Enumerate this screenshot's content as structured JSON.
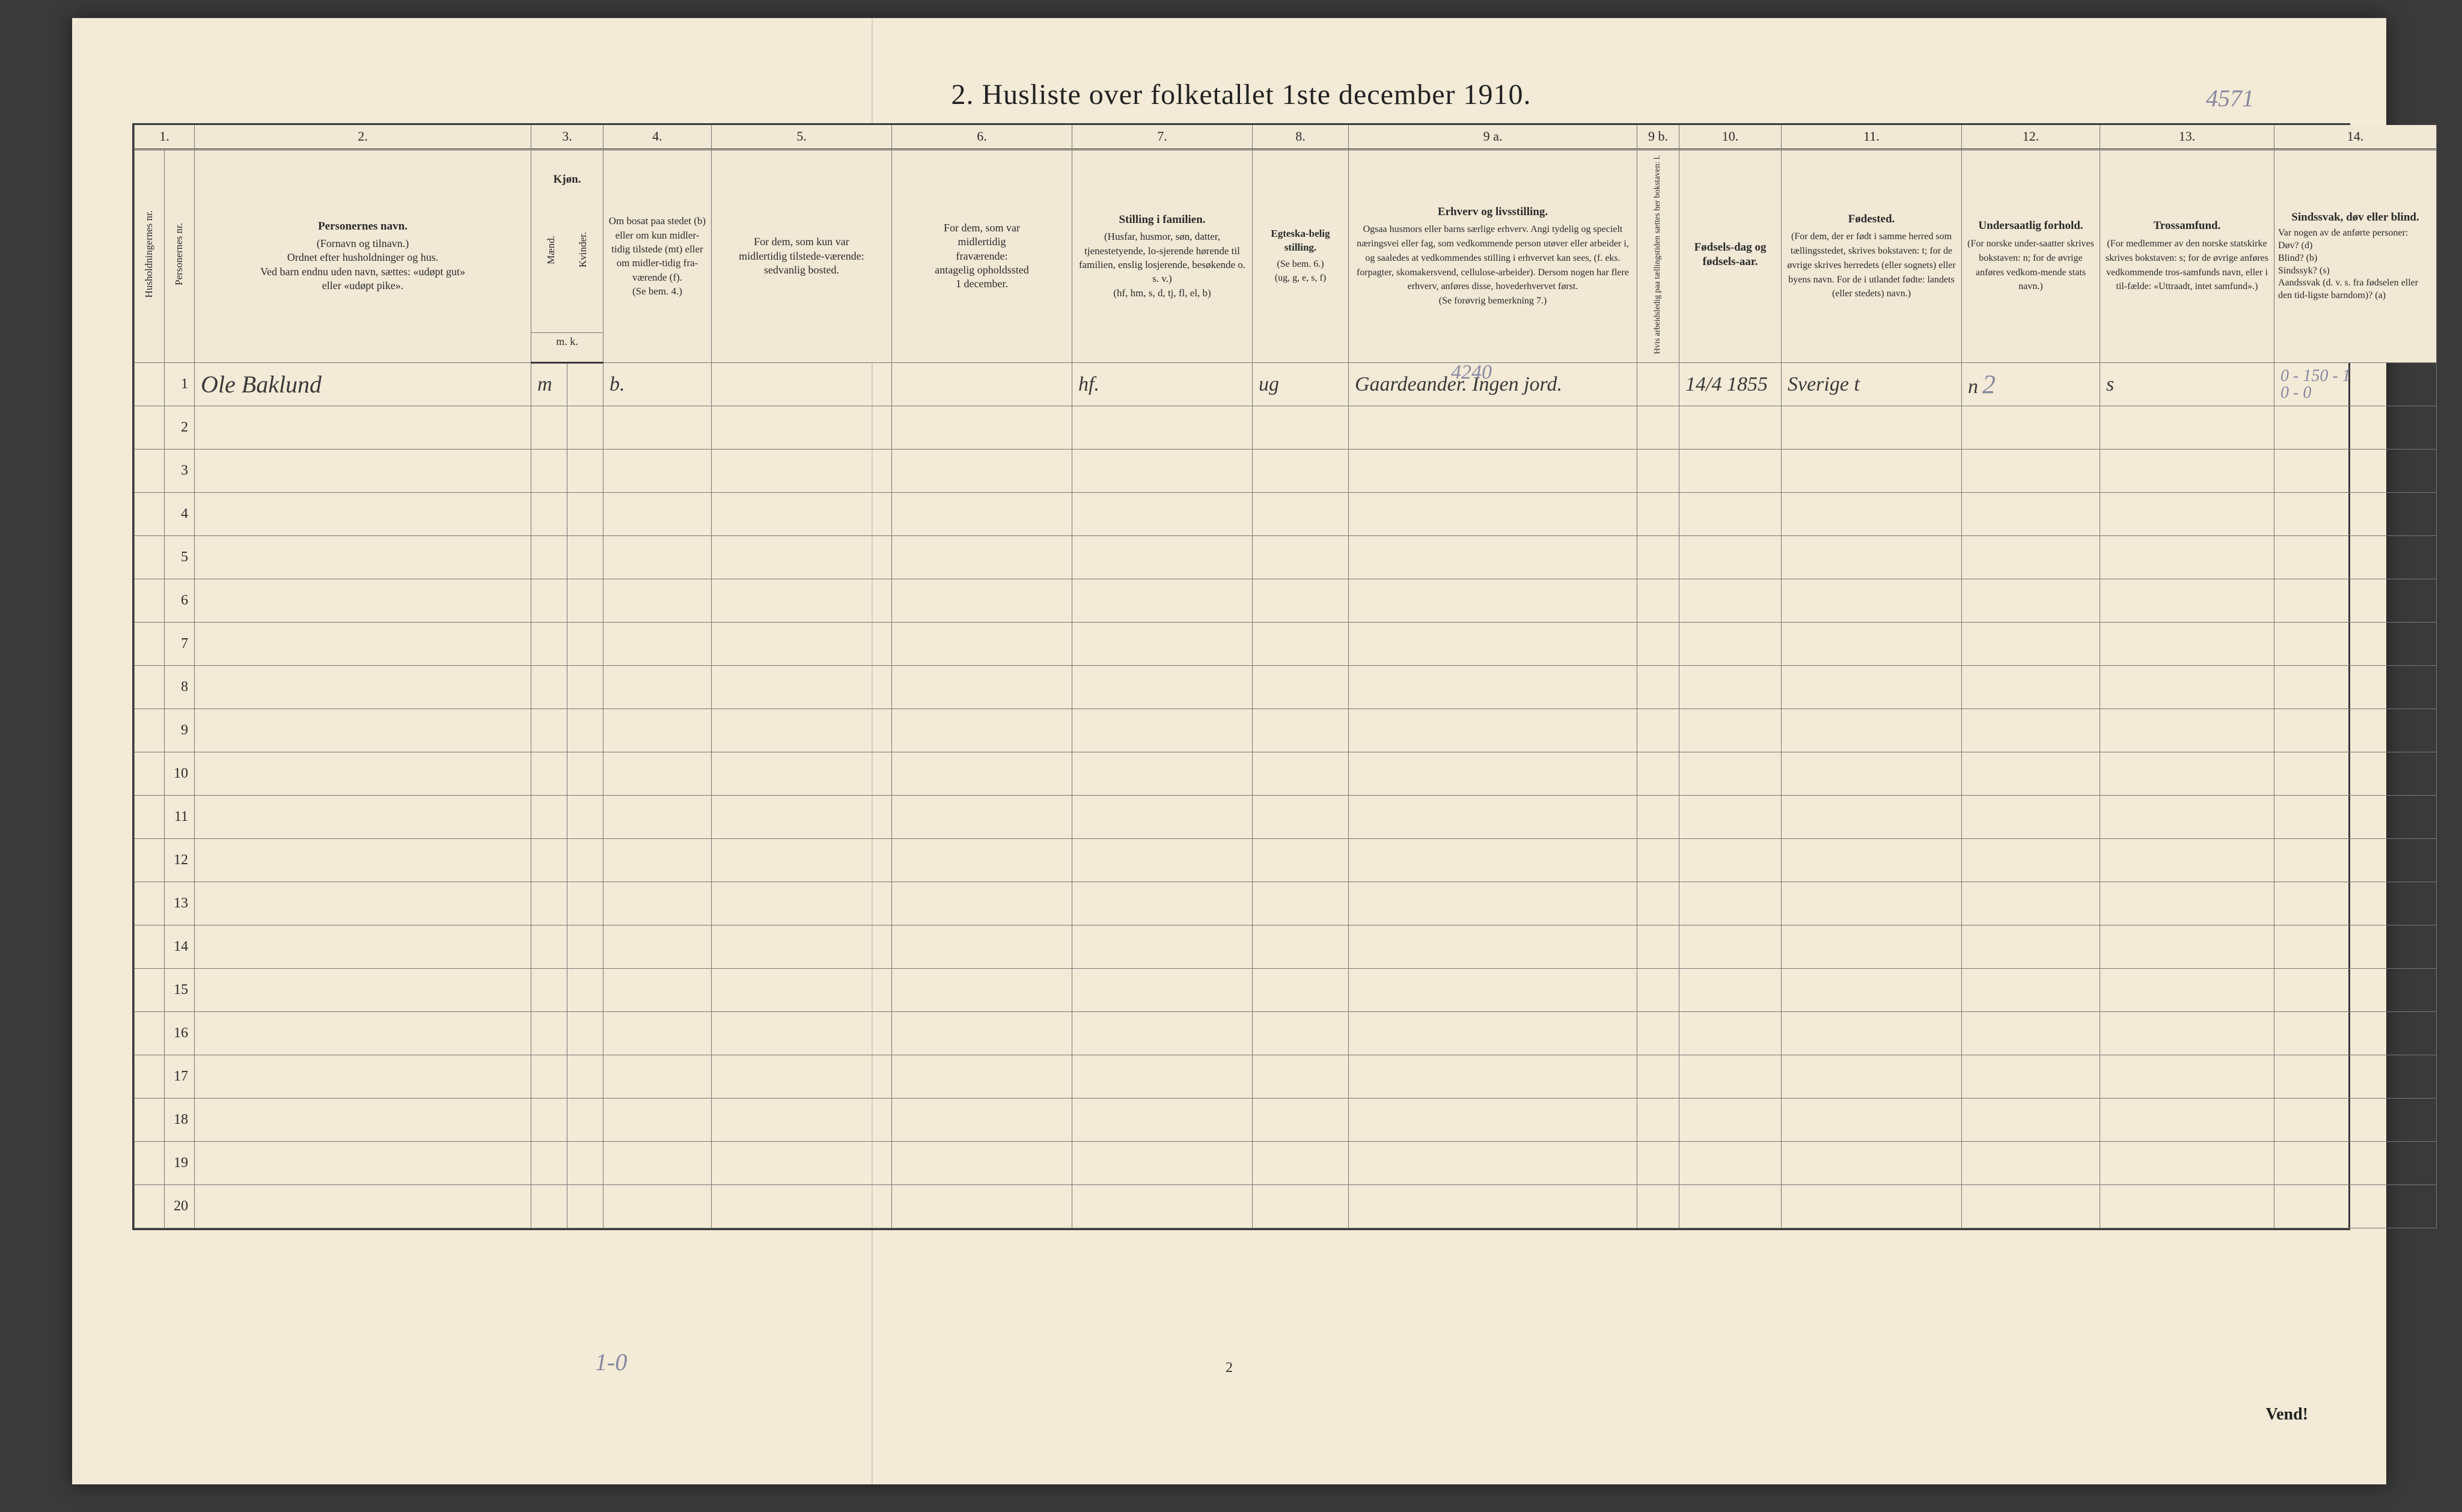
{
  "title": "2.  Husliste over folketallet 1ste december 1910.",
  "annotations": {
    "topright": "4571",
    "bottom_left": "1-0"
  },
  "page_number": "2",
  "vend": "Vend!",
  "column_numbers": [
    "1.",
    "2.",
    "3.",
    "4.",
    "5.",
    "6.",
    "7.",
    "8.",
    "9 a.",
    "9 b.",
    "10.",
    "11.",
    "12.",
    "13.",
    "14."
  ],
  "headers": {
    "col1a": "Husholdningernes nr.",
    "col1b": "Personernes nr.",
    "col2": {
      "title": "Personernes navn.",
      "body": "(Fornavn og tilnavn.)\nOrdnet efter husholdninger og hus.\nVed barn endnu uden navn, sættes: «udøpt gut»\neller «udøpt pike»."
    },
    "col3": {
      "title": "Kjøn.",
      "sub_a": "Mænd.",
      "sub_b": "Kvinder.",
      "foot": "m.  k."
    },
    "col4": {
      "body": "Om bosat paa stedet (b) eller om kun midler-tidig tilstede (mt) eller om midler-tidig fra-værende (f).\n(Se bem. 4.)"
    },
    "col5": {
      "body": "For dem, som kun var\nmidlertidig tilstede-værende:\nsedvanlig bosted."
    },
    "col6": {
      "body": "For dem, som var\nmidlertidig\nfraværende:\nantagelig opholdssted\n1 december."
    },
    "col7": {
      "title": "Stilling i familien.",
      "body": "(Husfar, husmor, søn, datter, tjenestetyende, lo-sjerende hørende til familien, enslig losjerende, besøkende o. s. v.)\n(hf, hm, s, d, tj, fl, el, b)"
    },
    "col8": {
      "title": "Egteska-belig stilling.",
      "body": "(Se bem. 6.)\n(ug, g, e, s, f)"
    },
    "col9a": {
      "title": "Erhverv og livsstilling.",
      "body": "Ogsaa husmors eller barns særlige erhverv. Angi tydelig og specielt næringsvei eller fag, som vedkommende person utøver eller arbeider i, og saaledes at vedkommendes stilling i erhvervet kan sees, (f. eks. forpagter, skomakersvend, cellulose-arbeider). Dersom nogen har flere erhverv, anføres disse, hovederhvervet først.\n(Se forøvrig bemerkning 7.)"
    },
    "col9b": "Hvis arbeidsledig paa tællingstiden sættes her bokstaven: l.",
    "col10": {
      "title": "Fødsels-dag og fødsels-aar."
    },
    "col11": {
      "title": "Fødested.",
      "body": "(For dem, der er født i samme herred som tællingsstedet, skrives bokstaven: t; for de øvrige skrives herredets (eller sognets) eller byens navn. For de i utlandet fødte: landets (eller stedets) navn.)"
    },
    "col12": {
      "title": "Undersaatlig forhold.",
      "body": "(For norske under-saatter skrives bokstaven: n; for de øvrige anføres vedkom-mende stats navn.)"
    },
    "col13": {
      "title": "Trossamfund.",
      "body": "(For medlemmer av den norske statskirke skrives bokstaven: s; for de øvrige anføres vedkommende tros-samfunds navn, eller i til-fælde: «Uttraadt, intet samfund».)"
    },
    "col14": {
      "title": "Sindssvak, døv eller blind.",
      "body": "Var nogen av de anførte personer:\nDøv?      (d)\nBlind?    (b)\nSindssyk? (s)\nAandssvak (d. v. s. fra fødselen eller den tid-ligste barndom)? (a)"
    }
  },
  "rows": [
    {
      "num": "1",
      "name": "Ole  Baklund",
      "sex_m": "m",
      "col4": "b.",
      "col5": "",
      "col6": "",
      "col7": "hf.",
      "col8": "ug",
      "col9a_pencil": "4240",
      "col9a": "Gaardeander. Ingen jord.",
      "col9b": "",
      "col10": "14/4 1855",
      "col11": "Sverige t",
      "col12_pencil": "2",
      "col12": "n",
      "col13": "s",
      "col14_pencil": "0 - 150 - 1",
      "col14_pencil2": "0 - 0"
    }
  ],
  "row_count": 20,
  "colors": {
    "paper": "#f3ead7",
    "ink": "#2a2a2a",
    "border": "#3a3a3a",
    "pencil": "#8888a0",
    "page_bg": "#3a3a3a"
  }
}
